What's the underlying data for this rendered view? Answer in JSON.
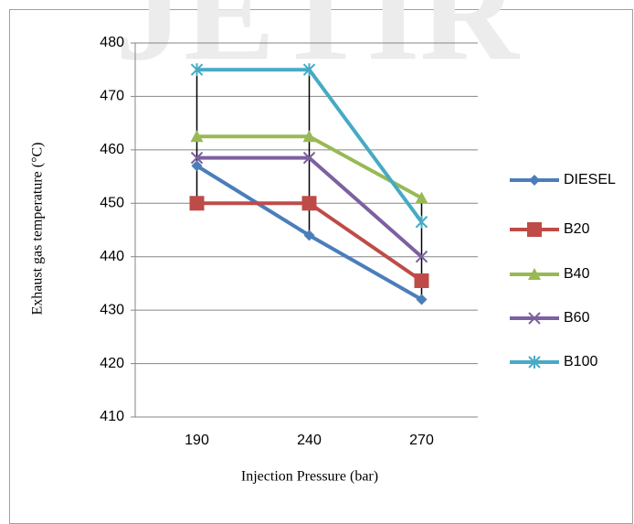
{
  "watermark": "JETIR",
  "chart_data": {
    "type": "line",
    "x_label": "Injection Pressure (bar)",
    "y_label": "Exhaust gas temperature (°C)",
    "categories": [
      "190",
      "240",
      "270"
    ],
    "series": [
      {
        "name": "DIESEL",
        "color": "#4a7ebb",
        "values": [
          457,
          444,
          432
        ]
      },
      {
        "name": "B20",
        "color": "#be4b48",
        "values": [
          450,
          450,
          435.5
        ]
      },
      {
        "name": "B40",
        "color": "#98b954",
        "values": [
          462.5,
          462.5,
          451
        ]
      },
      {
        "name": "B60",
        "color": "#7d60a0",
        "values": [
          458.5,
          458.5,
          440
        ]
      },
      {
        "name": "B100",
        "color": "#46aac5",
        "values": [
          475,
          475,
          446.5
        ]
      }
    ],
    "ylim": [
      410,
      480
    ],
    "yticks": [
      410,
      420,
      430,
      440,
      450,
      460,
      470,
      480
    ],
    "grid": true,
    "legend": "right",
    "high_low_lines": true
  }
}
